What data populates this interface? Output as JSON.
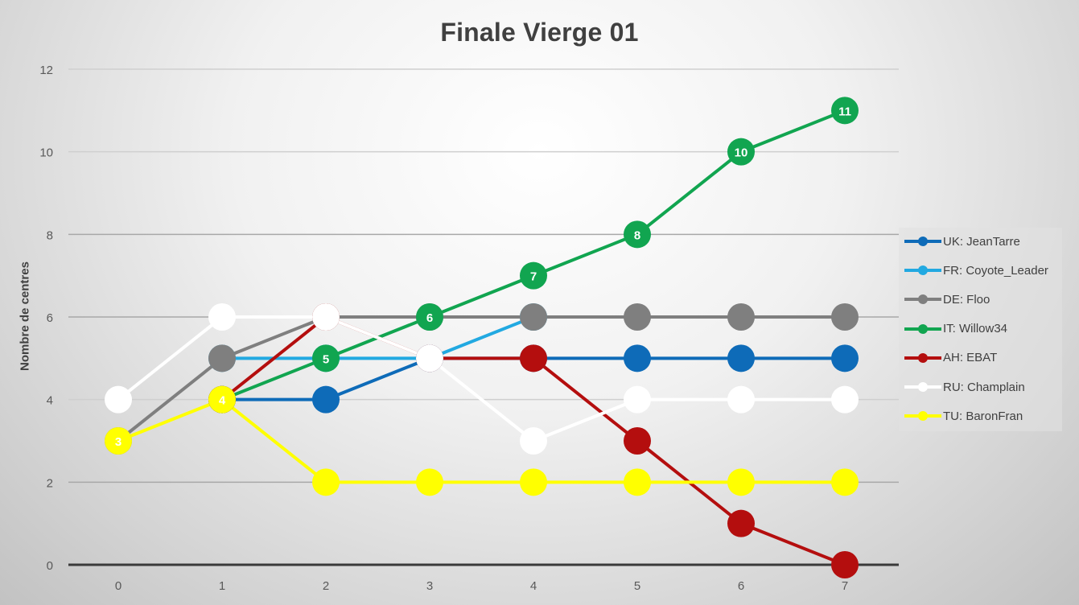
{
  "chart_data": {
    "type": "line",
    "title": "Finale Vierge 01",
    "xlabel": "",
    "ylabel": "Nombre de centres",
    "x": [
      0,
      1,
      2,
      3,
      4,
      5,
      6,
      7
    ],
    "xlim": [
      0,
      7
    ],
    "ylim": [
      0,
      12
    ],
    "y_ticks": [
      0,
      2,
      4,
      6,
      8,
      10,
      12
    ],
    "grid": "horizontal",
    "legend": "right",
    "series": [
      {
        "name": "UK: JeanTarre",
        "color": "#0E6BB8",
        "values": [
          null,
          4,
          4,
          5,
          5,
          5,
          5,
          5
        ],
        "point_labels": [
          null,
          null,
          null,
          null,
          null,
          null,
          null,
          null
        ]
      },
      {
        "name": "FR: Coyote_Leader",
        "color": "#22A9E1",
        "values": [
          null,
          5,
          5,
          5,
          6,
          null,
          null,
          null
        ],
        "point_labels": [
          null,
          null,
          null,
          null,
          null,
          null,
          null,
          null
        ]
      },
      {
        "name": "DE: Floo",
        "color": "#7F7F7F",
        "values": [
          3,
          5,
          6,
          6,
          6,
          6,
          6,
          6
        ],
        "point_labels": [
          null,
          null,
          null,
          null,
          null,
          null,
          null,
          null
        ]
      },
      {
        "name": "IT: Willow34",
        "color": "#11A550",
        "values": [
          null,
          4,
          5,
          6,
          7,
          8,
          10,
          11
        ],
        "point_labels": [
          null,
          null,
          "5",
          "6",
          "7",
          "8",
          "10",
          "11"
        ]
      },
      {
        "name": "AH: EBAT",
        "color": "#B40E0E",
        "values": [
          null,
          4,
          6,
          5,
          5,
          3,
          1,
          0
        ],
        "point_labels": [
          null,
          null,
          null,
          null,
          null,
          null,
          null,
          null
        ]
      },
      {
        "name": "RU: Champlain",
        "color": "#FFFFFF",
        "values": [
          4,
          6,
          6,
          5,
          3,
          4,
          4,
          4
        ],
        "point_labels": [
          null,
          null,
          null,
          null,
          null,
          null,
          null,
          null
        ]
      },
      {
        "name": "TU: BaronFran",
        "color": "#FFFF00",
        "values": [
          3,
          4,
          2,
          2,
          2,
          2,
          2,
          2
        ],
        "point_labels": [
          "3",
          "4",
          null,
          null,
          null,
          null,
          null,
          null
        ]
      }
    ]
  }
}
